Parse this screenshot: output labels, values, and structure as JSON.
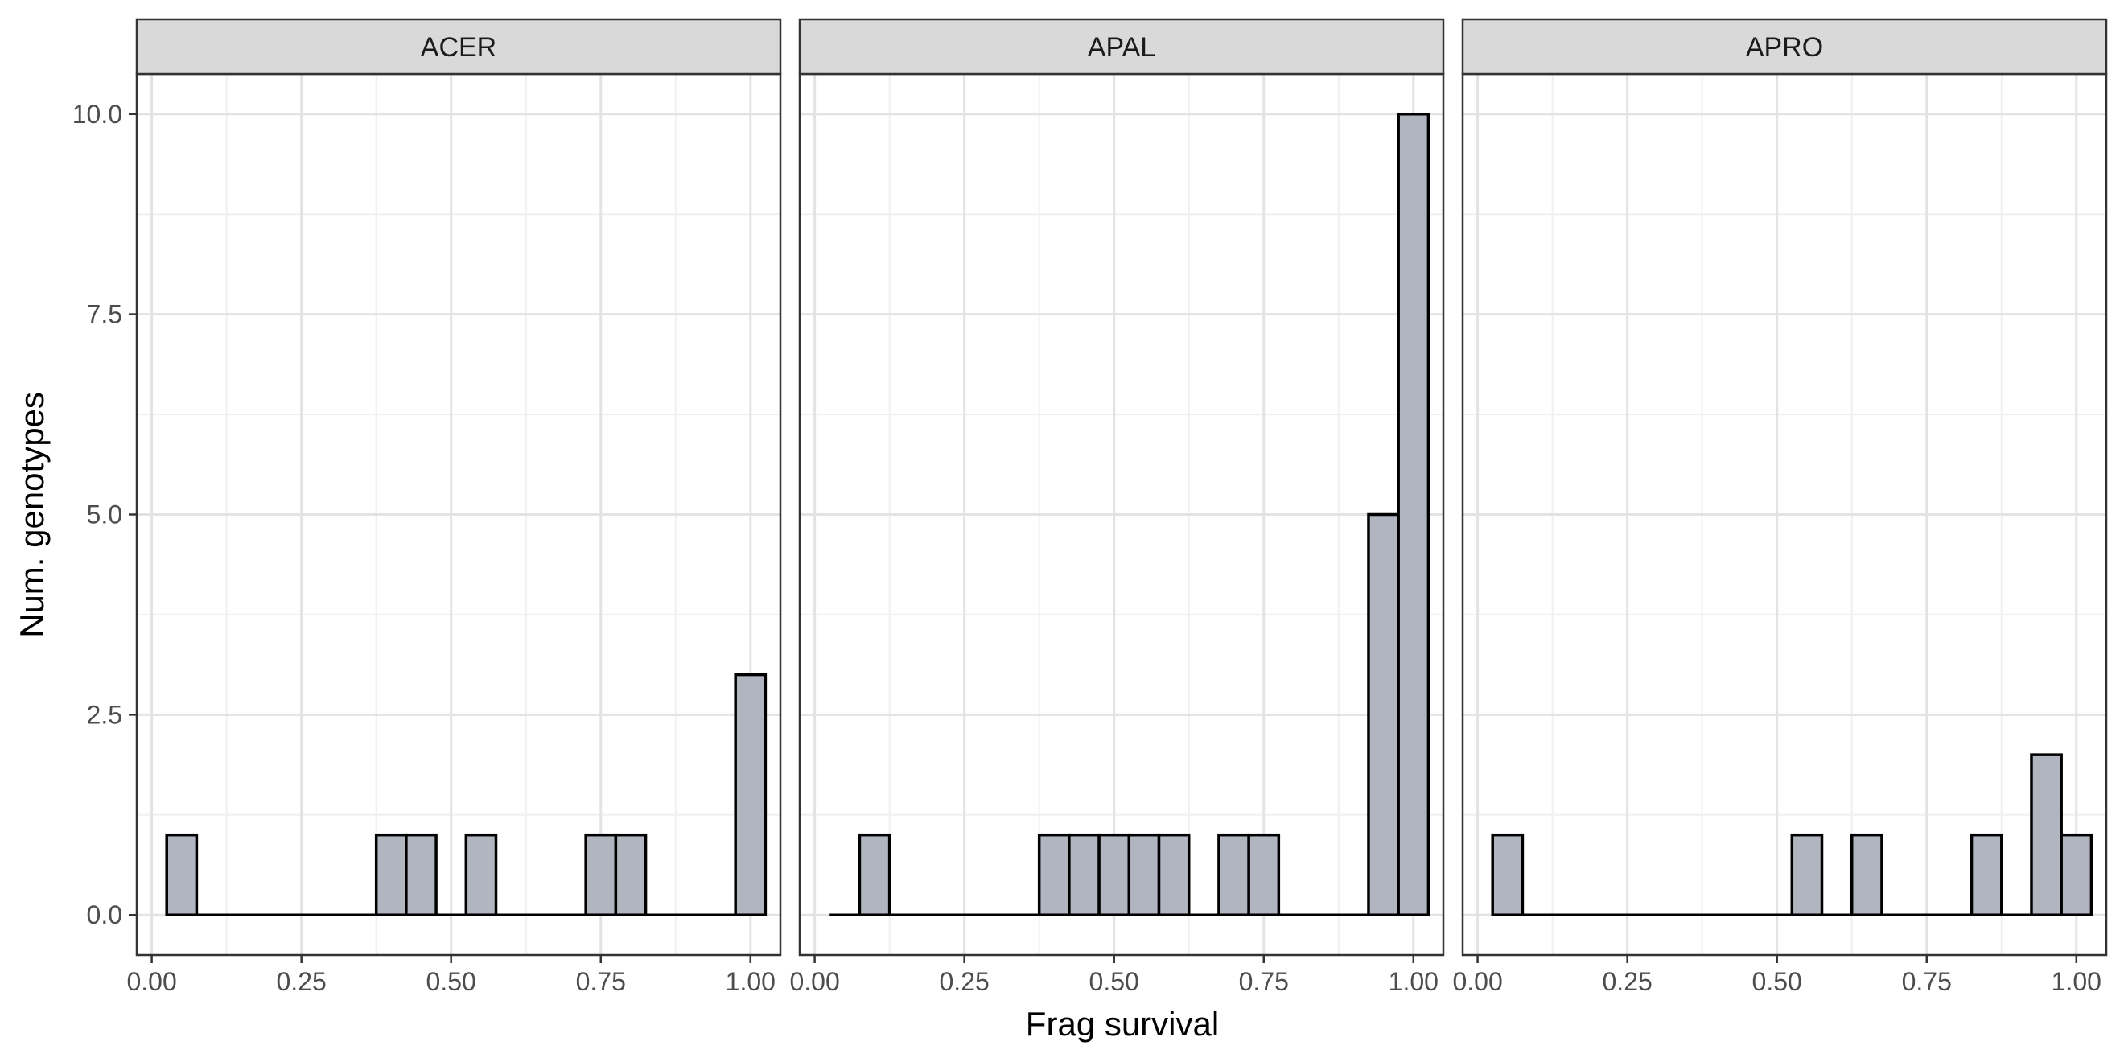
{
  "chart_data": {
    "type": "bar",
    "subtype": "histogram",
    "facet_layout": "3 columns, shared y axis",
    "xlabel": "Frag survival",
    "ylabel": "Num. genotypes",
    "xlim": [
      -0.025,
      1.05
    ],
    "ylim": [
      -0.5,
      10.5
    ],
    "x_ticks": [
      0.0,
      0.25,
      0.5,
      0.75,
      1.0
    ],
    "x_tick_labels": [
      "0.00",
      "0.25",
      "0.50",
      "0.75",
      "1.00"
    ],
    "y_ticks": [
      0.0,
      2.5,
      5.0,
      7.5,
      10.0
    ],
    "y_tick_labels": [
      "0.0",
      "2.5",
      "5.0",
      "7.5",
      "10.0"
    ],
    "grid": true,
    "bin_width": 0.05,
    "bin_centers": [
      0.05,
      0.1,
      0.15,
      0.2,
      0.25,
      0.3,
      0.35,
      0.4,
      0.45,
      0.5,
      0.55,
      0.6,
      0.65,
      0.7,
      0.75,
      0.8,
      0.85,
      0.9,
      0.95,
      1.0
    ],
    "colors": {
      "bar_fill": "#b0b5bf",
      "bar_stroke": "#000000",
      "strip_fill": "#d9d9d9"
    },
    "facets": [
      {
        "label": "ACER",
        "counts": [
          1,
          0,
          0,
          0,
          0,
          0,
          0,
          1,
          1,
          0,
          1,
          0,
          0,
          0,
          1,
          1,
          0,
          0,
          0,
          3
        ]
      },
      {
        "label": "APAL",
        "counts": [
          0,
          1,
          0,
          0,
          0,
          0,
          0,
          1,
          1,
          1,
          1,
          1,
          0,
          1,
          1,
          0,
          0,
          0,
          5,
          10
        ]
      },
      {
        "label": "APRO",
        "counts": [
          1,
          0,
          0,
          0,
          0,
          0,
          0,
          0,
          0,
          0,
          1,
          0,
          1,
          0,
          0,
          0,
          1,
          0,
          2,
          1
        ]
      }
    ]
  }
}
